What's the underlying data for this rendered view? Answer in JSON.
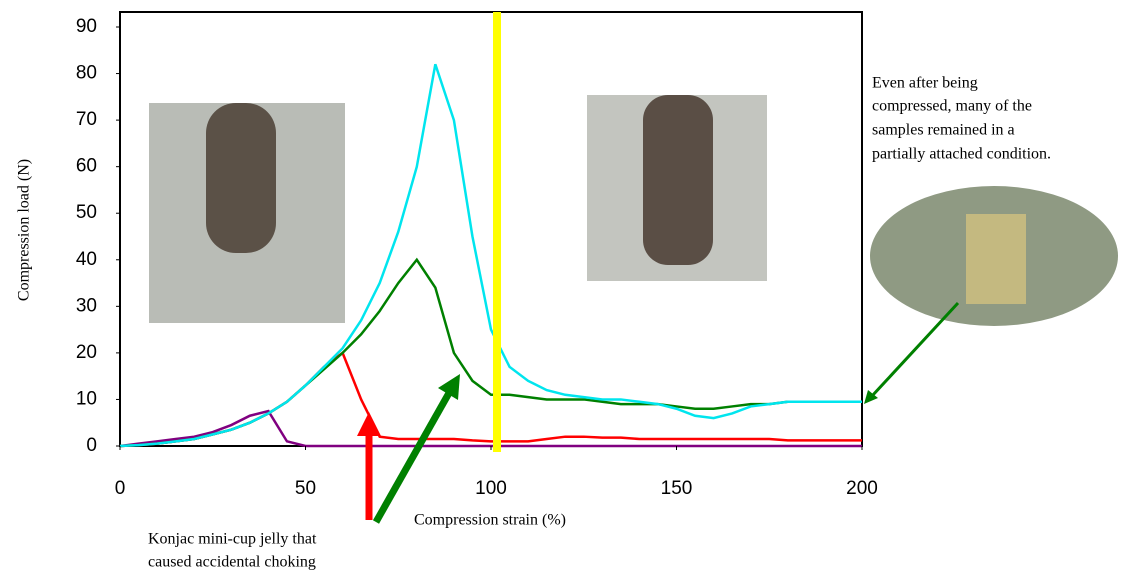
{
  "chart_data": {
    "type": "line",
    "y_label": "Compression load (N)",
    "x_label": "Compression strain (%)",
    "annotation_right": [
      "Even after being",
      "compressed, many of the",
      "samples remained in a",
      "partially attached condition."
    ],
    "annotation_bottom": [
      "Konjac mini-cup jelly that",
      "caused accidental choking"
    ],
    "xlim": [
      0,
      200
    ],
    "xticks": [
      0,
      50,
      100,
      150,
      200
    ],
    "ylim": [
      0,
      90
    ],
    "yticks": [
      0,
      10,
      20,
      30,
      40,
      50,
      60,
      70,
      80,
      90
    ],
    "x": [
      0,
      5,
      10,
      15,
      20,
      25,
      30,
      35,
      40,
      45,
      50,
      55,
      60,
      65,
      70,
      75,
      80,
      85,
      90,
      95,
      100,
      105,
      110,
      115,
      120,
      125,
      130,
      135,
      140,
      145,
      150,
      155,
      160,
      165,
      170,
      175,
      180,
      185,
      190,
      195,
      200
    ],
    "series": [
      {
        "color": "#800080",
        "values": [
          0,
          0.5,
          1,
          1.5,
          2,
          3,
          4.5,
          6.5,
          7.5,
          1,
          0,
          0,
          0,
          0,
          0,
          0,
          0,
          0,
          0,
          0,
          0,
          0,
          0,
          0,
          0,
          0,
          0,
          0,
          0,
          0,
          0,
          0,
          0,
          0,
          0,
          0,
          0,
          0,
          0,
          0,
          0
        ]
      },
      {
        "color": "#ff0000",
        "values": [
          0,
          0.2,
          0.5,
          1,
          1.5,
          2.5,
          3.5,
          5,
          7,
          9.5,
          13,
          17,
          20,
          10,
          2,
          1.5,
          1.5,
          1.5,
          1.5,
          1.2,
          1,
          1,
          1,
          1.5,
          2,
          2,
          1.8,
          1.8,
          1.5,
          1.5,
          1.5,
          1.5,
          1.5,
          1.5,
          1.5,
          1.5,
          1.2,
          1.2,
          1.2,
          1.2,
          1.2
        ]
      },
      {
        "color": "#008000",
        "values": [
          0,
          0.2,
          0.5,
          1,
          1.5,
          2.5,
          3.5,
          5,
          7,
          9.5,
          13,
          16.5,
          20,
          24,
          29,
          35,
          40,
          34,
          20,
          14,
          11,
          11,
          10.5,
          10,
          10,
          10,
          9.5,
          9,
          9,
          9,
          8.5,
          8,
          8,
          8.5,
          9,
          9,
          9.5,
          9.5,
          9.5,
          9.5,
          9.5
        ]
      },
      {
        "color": "#00e5ee",
        "values": [
          0,
          0.2,
          0.5,
          1,
          1.5,
          2.5,
          3.5,
          5,
          7,
          9.5,
          13,
          17,
          21,
          27,
          35,
          46,
          60,
          82,
          70,
          45,
          25,
          17,
          14,
          12,
          11,
          10.5,
          10,
          10,
          9.5,
          9,
          8,
          6.5,
          6,
          7,
          8.5,
          9,
          9.5,
          9.5,
          9.5,
          9.5,
          9.5
        ]
      }
    ]
  }
}
